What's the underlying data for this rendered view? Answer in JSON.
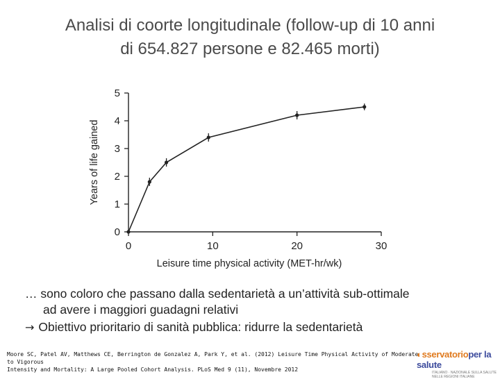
{
  "title": {
    "line1": "Analisi di coorte longitudinale (follow-up di 10 anni",
    "line2": "di 654.827 persone e 82.465 morti)"
  },
  "chart_data": {
    "type": "line",
    "xlabel": "Leisure time physical activity (MET-hr/wk)",
    "ylabel": "Years of life gained",
    "xlim": [
      0,
      30
    ],
    "ylim": [
      0,
      5
    ],
    "xticks": [
      0,
      10,
      20,
      30
    ],
    "yticks": [
      0,
      1,
      2,
      3,
      4,
      5
    ],
    "grid": false,
    "series": [
      {
        "x": [
          0,
          2.5,
          4.5,
          9.5,
          20,
          28
        ],
        "y": [
          0,
          1.8,
          2.5,
          3.4,
          4.2,
          4.5
        ],
        "error": [
          0,
          0.15,
          0.15,
          0.15,
          0.15,
          0.12
        ]
      }
    ],
    "color": "#222222"
  },
  "caption": {
    "line1": "… sono coloro che passano dalla sedentarietà a un’attività sub-ottimale",
    "line2": "ad avere i maggiori guadagni relativi",
    "goal": "Obiettivo prioritario di sanità pubblica: ridurre la sedentarietà"
  },
  "reference": {
    "line1": "Moore SC, Patel AV, Matthews CE, Berrington de Gonzalez A, Park Y, et al. (2012) Leisure Time Physical Activity of Moderate to Vigorous",
    "line2": "Intensity and Mortality: A Large Pooled Cohort Analysis. PLoS Med 9 (11), Novembre 2012"
  },
  "logo": {
    "prefix": "sservatorio",
    "suffix": "per la salute",
    "tagline": "ITALIANO · NAZIONALE SULLA SALUTE NELLE REGIONI ITALIANE"
  }
}
